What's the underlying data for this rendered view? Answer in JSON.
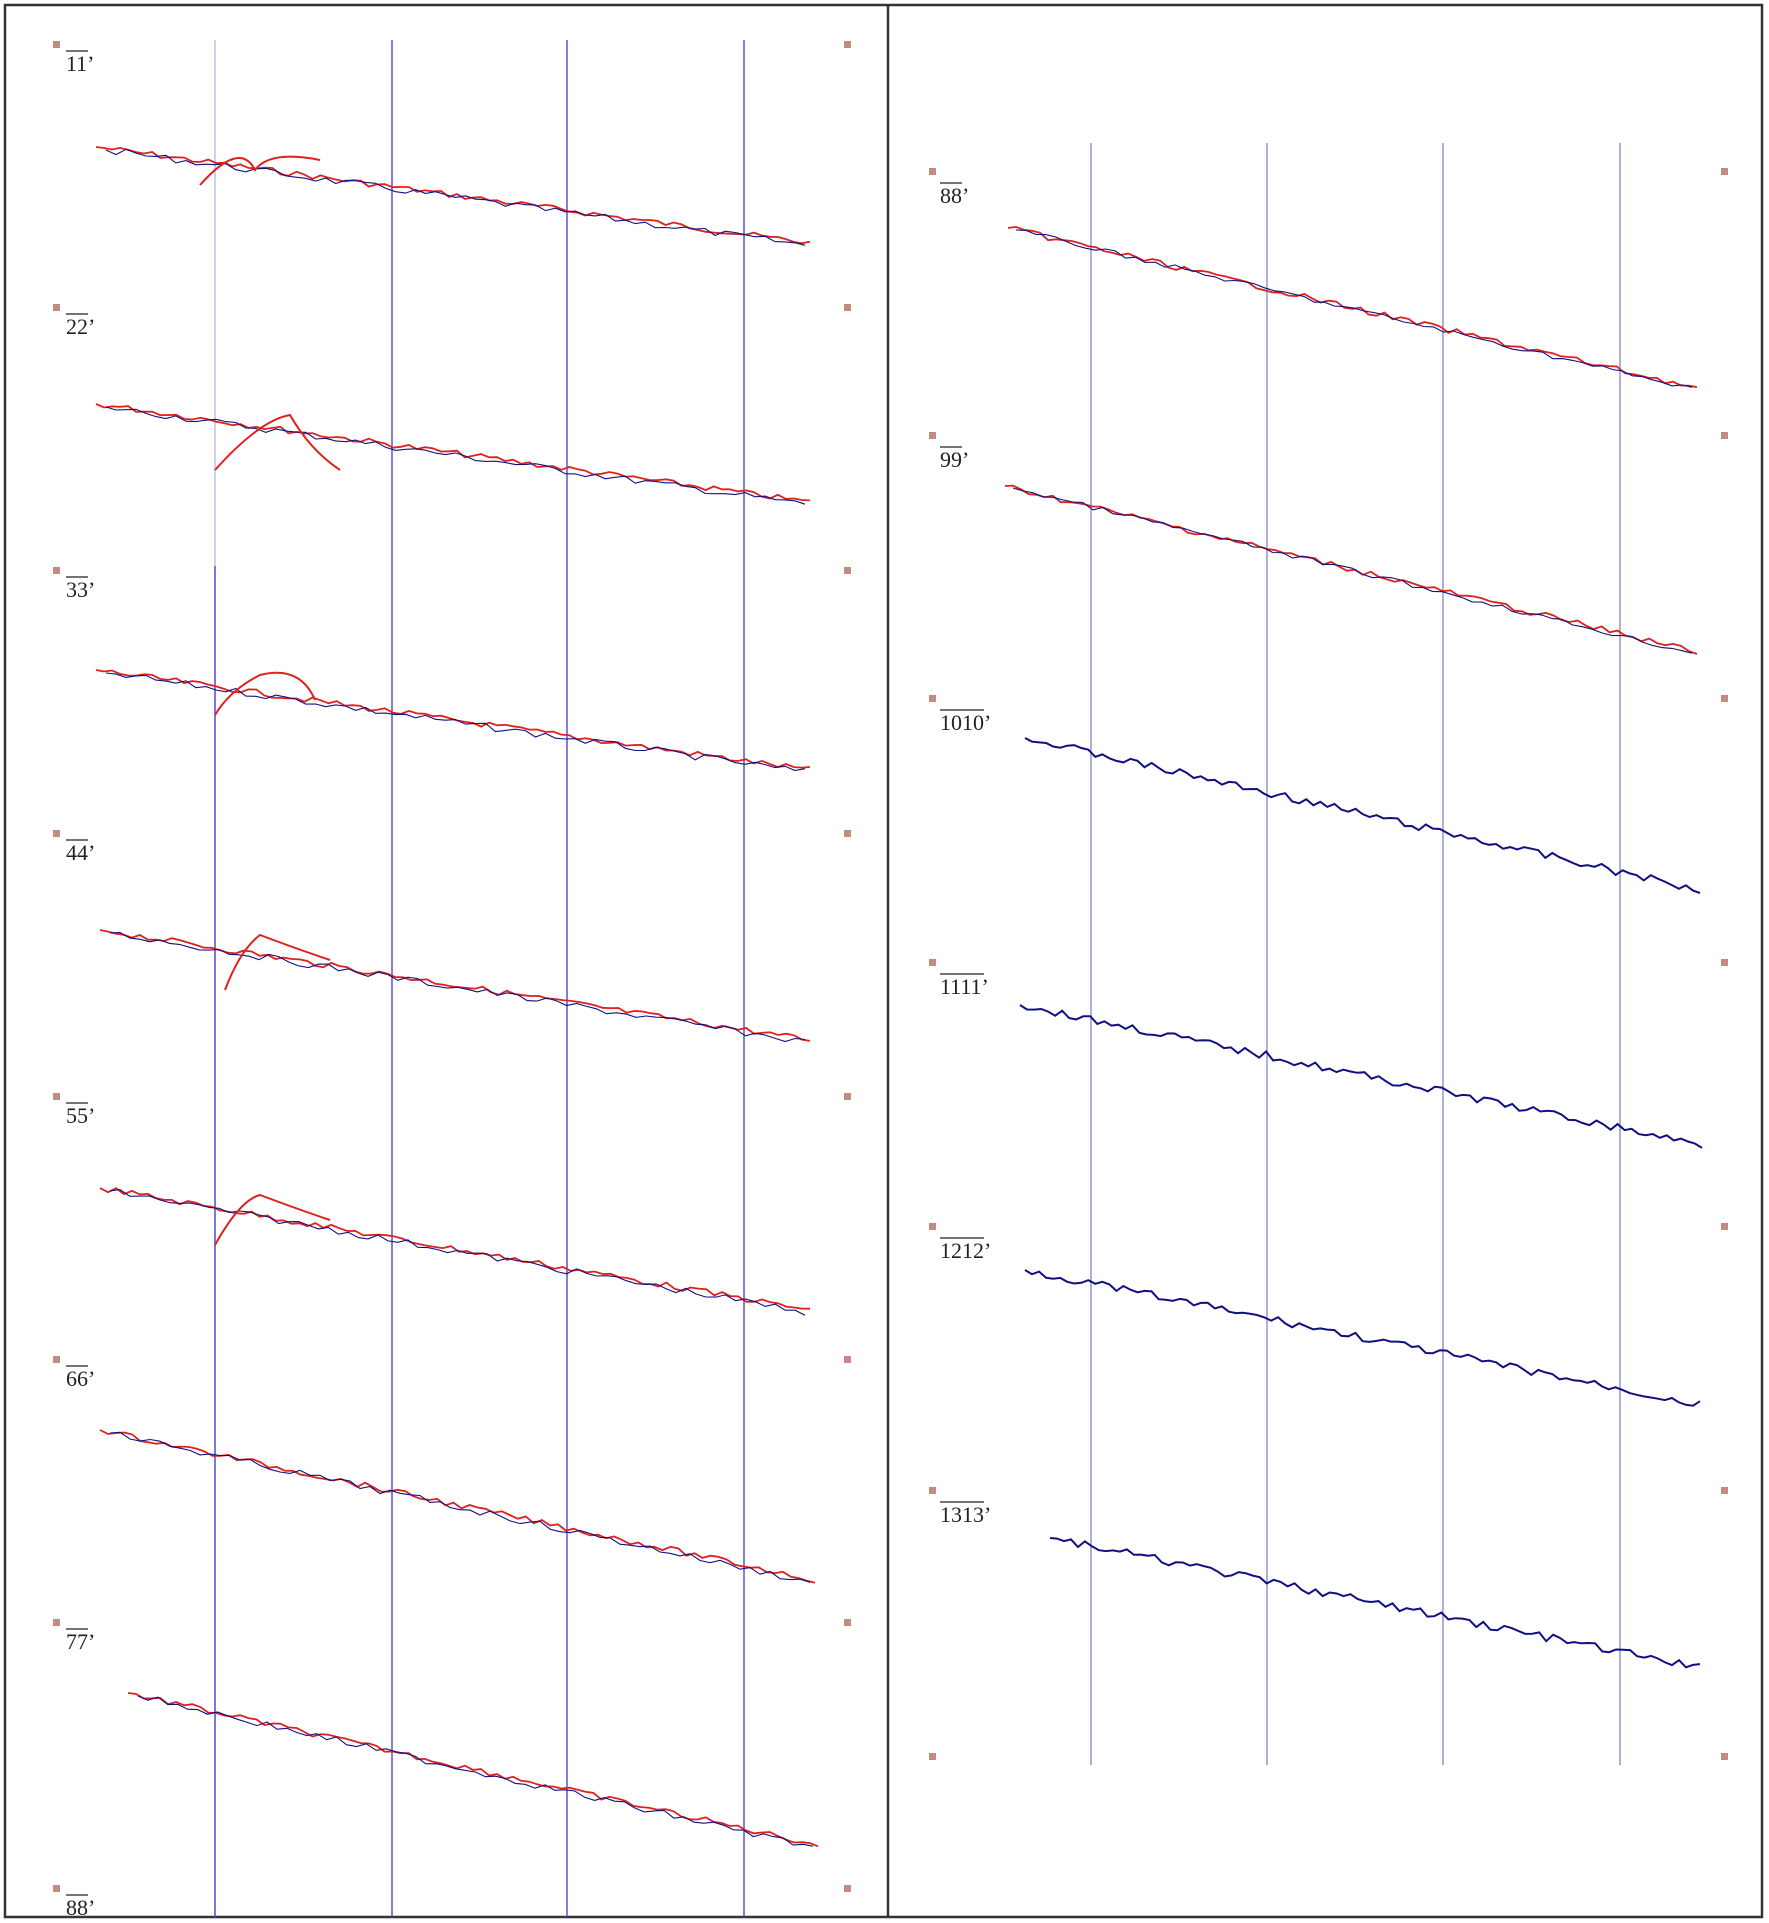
{
  "colors": {
    "frame": "#333333",
    "gridline_left": "#4a4ad6",
    "gridline_right": "#8c8fc4",
    "marker": "#c58a80",
    "red_trace": "#e0201c",
    "blue_trace": "#101083"
  },
  "left_panel": {
    "profiles": [
      {
        "label": "11’",
        "overline": "11"
      },
      {
        "label": "22’",
        "overline": "22"
      },
      {
        "label": "33’",
        "overline": "33"
      },
      {
        "label": "44’",
        "overline": "44"
      },
      {
        "label": "55’",
        "overline": "55"
      },
      {
        "label": "66’",
        "overline": "66"
      },
      {
        "label": "77’",
        "overline": "77"
      },
      {
        "label": "88’",
        "overline": "88"
      }
    ]
  },
  "right_panel": {
    "profiles": [
      {
        "label": "88’",
        "overline": "88"
      },
      {
        "label": "99’",
        "overline": "99"
      },
      {
        "label": "1010’",
        "overline": "1010"
      },
      {
        "label": "1111’",
        "overline": "1111"
      },
      {
        "label": "1212’",
        "overline": "1212"
      },
      {
        "label": "1313’",
        "overline": "1313"
      }
    ]
  }
}
